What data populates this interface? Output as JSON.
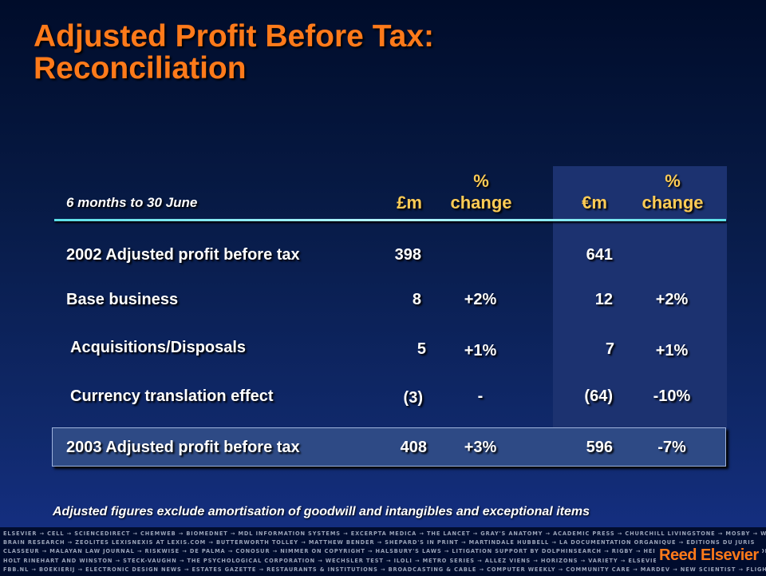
{
  "title_line1": "Adjusted Profit Before Tax:",
  "title_line2": "Reconciliation",
  "table": {
    "period_label": "6 months to 30 June",
    "headers": {
      "gbp": "£m",
      "gbp_pct_line1": "%",
      "gbp_pct_line2": "change",
      "eur": "€m",
      "eur_pct_line1": "%",
      "eur_pct_line2": "change"
    },
    "rows": [
      {
        "label": "2002 Adjusted profit before tax",
        "gbp": "398",
        "gbp_pct": "",
        "eur": "641",
        "eur_pct": ""
      },
      {
        "label": "Base business",
        "gbp": "8",
        "gbp_pct": "+2%",
        "eur": "12",
        "eur_pct": "+2%"
      },
      {
        "label": "Acquisitions/Disposals",
        "gbp": "5",
        "gbp_pct": "+1%",
        "eur": "7",
        "eur_pct": "+1%"
      },
      {
        "label": "Currency translation effect",
        "gbp": "(3)",
        "gbp_pct": "-",
        "eur": "(64)",
        "eur_pct": "-10%"
      }
    ],
    "total": {
      "label": "2003 Adjusted profit before tax",
      "gbp": "408",
      "gbp_pct": "+3%",
      "eur": "596",
      "eur_pct": "-7%"
    }
  },
  "footnote": "Adjusted figures exclude amortisation of goodwill and intangibles and exceptional items",
  "footer": {
    "brand_lines": [
      "ELSEVIER → CELL → SCIENCEDIRECT → CHEMWEB → BIOMEDNET → MDL INFORMATION SYSTEMS → EXCERPTA MEDICA → THE LANCET → GRAY'S ANATOMY → ACADEMIC PRESS → CHURCHILL LIVINGSTONE → MOSBY → WB SAUNDERS → MD CONSULT",
      "BRAIN RESEARCH → ZEOLITES LEXISNEXIS AT LEXIS.COM → BUTTERWORTH TOLLEY → MATTHEW BENDER → SHEPARD'S IN PRINT → MARTINDALE HUBBELL → LA DOCUMENTATION ORGANIQUE → EDITIONS DU JURIS",
      "CLASSEUR → MALAYAN LAW JOURNAL → RISKWISE → DE PALMA → CONOSUR → NIMMER ON COPYRIGHT → HALSBURY'S LAWS → LITIGATION SUPPORT BY DOLPHINSEARCH → RIGBY → HEINEMANN → GINN → GREENWOOD",
      "HOLT RINEHART AND WINSTON → STECK-VAUGHN → THE PSYCHOLOGICAL CORPORATION → WECHSLER TEST → ILOLI → METRO SERIES → ALLEZ VIENS → HORIZONS → VARIETY → ELSEVIER → BELEGGERS BELANGEN",
      "FBB.NL → BOEKIERIJ → ELECTRONIC DESIGN NEWS → ESTATES GAZETTE → RESTAURANTS & INSTITUTIONS → BROADCASTING & CABLE → COMPUTER WEEKLY → COMMUNITY CARE → MARDEV → NEW SCIENTIST → FLIGHT INTERNATIONAL"
    ],
    "logo": "Reed Elsevier"
  }
}
